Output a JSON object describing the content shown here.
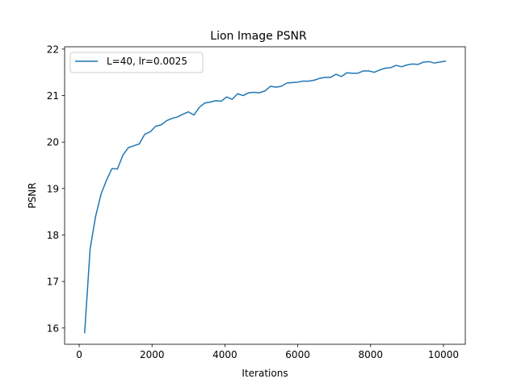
{
  "chart_data": {
    "type": "line",
    "title": "Lion Image PSNR",
    "xlabel": "Iterations",
    "ylabel": "PSNR",
    "xlim": [
      -400,
      10600
    ],
    "ylim": [
      15.65,
      22.05
    ],
    "xticks": [
      0,
      2000,
      4000,
      6000,
      8000,
      10000
    ],
    "yticks": [
      16,
      17,
      18,
      19,
      20,
      21,
      22
    ],
    "grid": false,
    "legend_position": "top-left",
    "series": [
      {
        "name": "L=40, lr=0.0025",
        "color": "#1f77b4",
        "x": [
          150,
          300,
          450,
          600,
          750,
          900,
          1050,
          1200,
          1350,
          1500,
          1650,
          1800,
          1950,
          2100,
          2250,
          2400,
          2550,
          2700,
          2850,
          3000,
          3150,
          3300,
          3450,
          3600,
          3750,
          3900,
          4050,
          4200,
          4350,
          4500,
          4650,
          4800,
          4950,
          5100,
          5250,
          5400,
          5550,
          5700,
          5850,
          6000,
          6150,
          6300,
          6450,
          6600,
          6750,
          6900,
          7050,
          7200,
          7350,
          7500,
          7650,
          7800,
          7950,
          8100,
          8250,
          8400,
          8550,
          8700,
          8850,
          9000,
          9150,
          9300,
          9450,
          9600,
          9750,
          9900,
          10050
        ],
        "y": [
          15.9,
          17.7,
          18.4,
          18.88,
          19.18,
          19.43,
          19.42,
          19.72,
          19.88,
          19.92,
          19.96,
          20.17,
          20.22,
          20.34,
          20.37,
          20.46,
          20.51,
          20.54,
          20.6,
          20.65,
          20.58,
          20.75,
          20.84,
          20.86,
          20.89,
          20.88,
          20.97,
          20.92,
          21.04,
          21.0,
          21.06,
          21.07,
          21.06,
          21.1,
          21.2,
          21.18,
          21.2,
          21.27,
          21.28,
          21.29,
          21.31,
          21.31,
          21.33,
          21.37,
          21.39,
          21.39,
          21.46,
          21.41,
          21.49,
          21.48,
          21.48,
          21.53,
          21.53,
          21.5,
          21.55,
          21.59,
          21.6,
          21.65,
          21.62,
          21.66,
          21.68,
          21.67,
          21.72,
          21.73,
          21.7,
          21.72,
          21.74
        ]
      }
    ]
  }
}
